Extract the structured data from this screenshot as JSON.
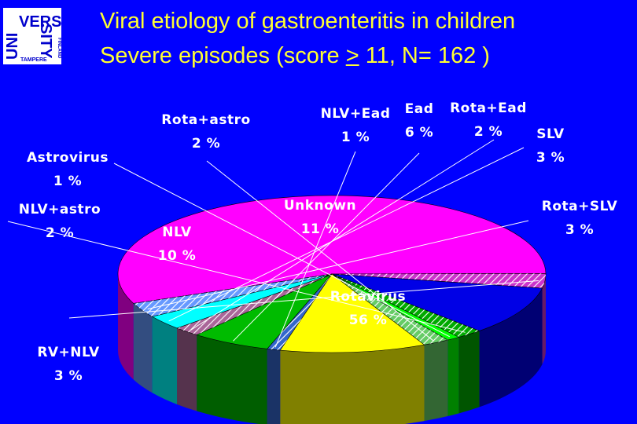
{
  "logo": {
    "lines": [
      "VERS",
      "UNI",
      "SITY",
      "TAMPERE",
      "FINLAND"
    ],
    "text_color": "#0000cc",
    "background": "#ffffff"
  },
  "title": {
    "line1": "Viral etiology of gastroenteritis in children",
    "line2_a": "Severe episodes (score ",
    "line2_ge": ">",
    "line2_b": " 11, N= 162 )",
    "color": "#ffff33"
  },
  "chart_data": {
    "type": "pie",
    "style": "3d",
    "title": "Viral etiology of gastroenteritis in children",
    "subtitle": "Severe episodes (score > 11, N= 162 )",
    "slices": [
      {
        "name": "Rotavirus",
        "label": "56 %",
        "value": 56,
        "color": "#ff00ff"
      },
      {
        "name": "RV+NLV",
        "label": "3 %",
        "value": 3,
        "color": "#cc33cc",
        "pattern": "hatch"
      },
      {
        "name": "NLV",
        "label": "10 %",
        "value": 10,
        "color": "#0000e6"
      },
      {
        "name": "NLV+astro",
        "label": "2 %",
        "value": 2,
        "color": "#00aa00",
        "pattern": "hatch"
      },
      {
        "name": "Astrovirus",
        "label": "1 %",
        "value": 1,
        "color": "#00ff00"
      },
      {
        "name": "Rota+astro",
        "label": "2 %",
        "value": 2,
        "color": "#66cc66",
        "pattern": "hatch"
      },
      {
        "name": "Unknown",
        "label": "11 %",
        "value": 11,
        "color": "#ffff00"
      },
      {
        "name": "NLV+Ead",
        "label": "1 %",
        "value": 1,
        "color": "#3366cc",
        "pattern": "hatch"
      },
      {
        "name": "Ead",
        "label": "6 %",
        "value": 6,
        "color": "#00bb00"
      },
      {
        "name": "Rota+Ead",
        "label": "2 %",
        "value": 2,
        "color": "#aa6699",
        "pattern": "hatch"
      },
      {
        "name": "SLV",
        "label": "3 %",
        "value": 3,
        "color": "#00ffff"
      },
      {
        "name": "Rota+SLV",
        "label": "3 %",
        "value": 3,
        "color": "#6699ff",
        "pattern": "hatch"
      }
    ]
  }
}
